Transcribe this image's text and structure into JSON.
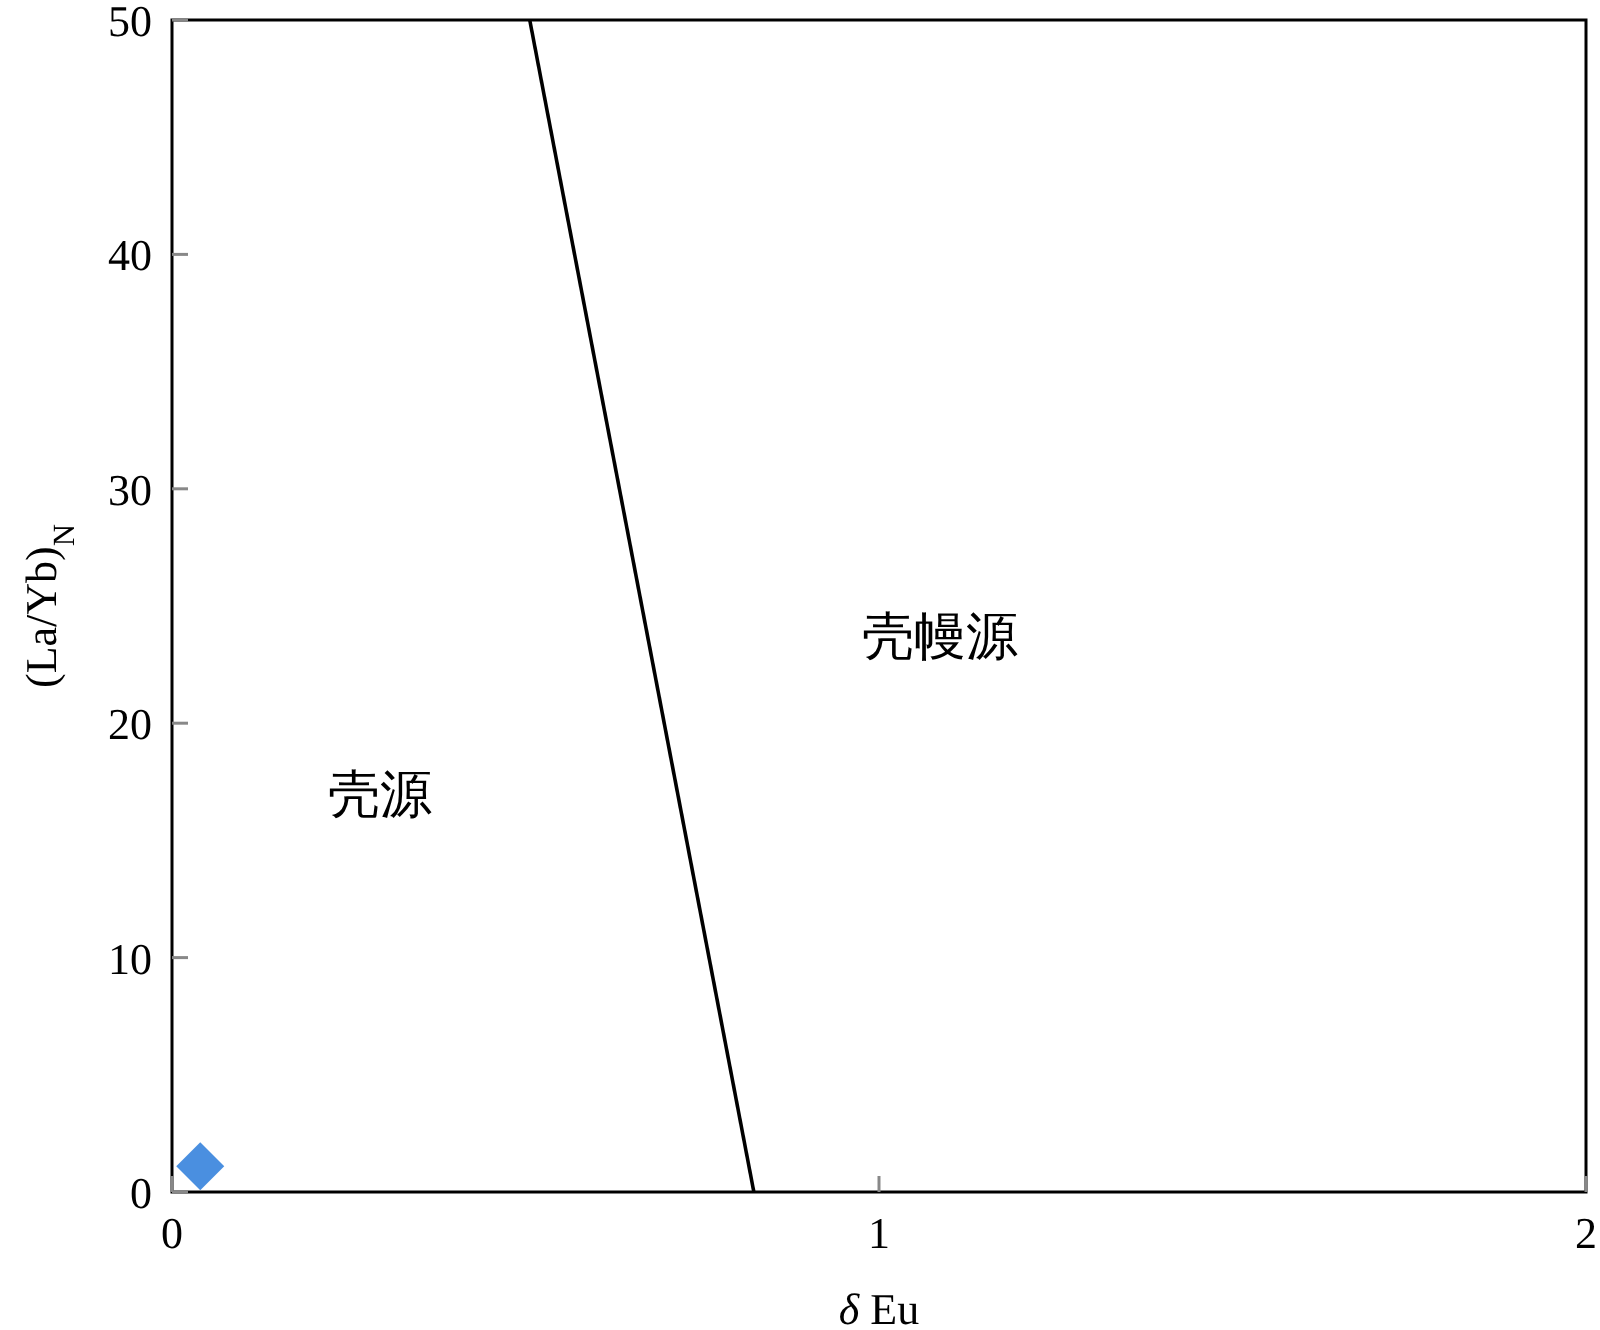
{
  "chart_data": {
    "type": "scatter",
    "xlabel": "*δ* Eu",
    "ylabel": "(La/Yb)$_{N}$",
    "xlim": [
      0,
      2
    ],
    "ylim": [
      0,
      50
    ],
    "xticks": [
      0,
      1,
      2
    ],
    "yticks": [
      0,
      10,
      20,
      30,
      40,
      50
    ],
    "grid": false,
    "marker": "diamond",
    "series": [
      {
        "type": "line",
        "color": "#000000",
        "x": [
          0.506,
          0.823
        ],
        "values": [
          50,
          0
        ],
        "marker": "none"
      },
      {
        "color": "#4a8fe0",
        "x": [
          0.04
        ],
        "values": [
          1.1
        ]
      }
    ],
    "annotations": [
      "壳源",
      "壳幔源"
    ]
  }
}
